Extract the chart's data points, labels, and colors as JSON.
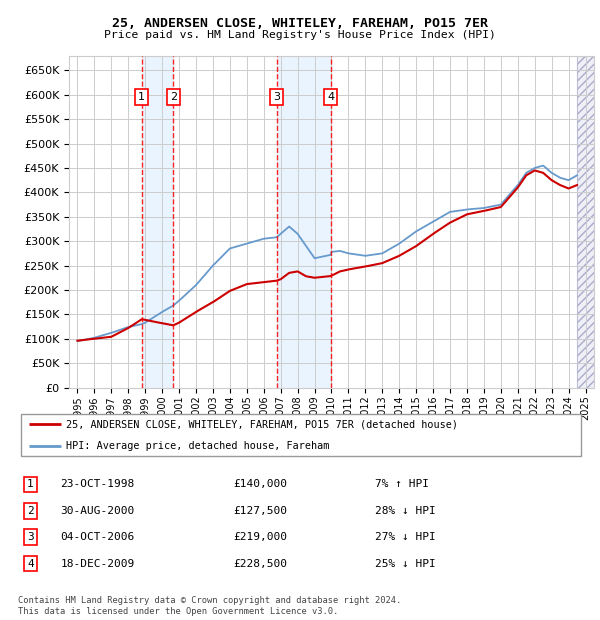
{
  "title": "25, ANDERSEN CLOSE, WHITELEY, FAREHAM, PO15 7ER",
  "subtitle": "Price paid vs. HM Land Registry's House Price Index (HPI)",
  "legend_label_red": "25, ANDERSEN CLOSE, WHITELEY, FAREHAM, PO15 7ER (detached house)",
  "legend_label_blue": "HPI: Average price, detached house, Fareham",
  "copyright": "Contains HM Land Registry data © Crown copyright and database right 2024.\nThis data is licensed under the Open Government Licence v3.0.",
  "transactions": [
    {
      "num": 1,
      "date": "23-OCT-1998",
      "price": "£140,000",
      "hpi": "7% ↑ HPI",
      "year": 1998.8
    },
    {
      "num": 2,
      "date": "30-AUG-2000",
      "price": "£127,500",
      "hpi": "28% ↓ HPI",
      "year": 2000.66
    },
    {
      "num": 3,
      "date": "04-OCT-2006",
      "price": "£219,000",
      "hpi": "27% ↓ HPI",
      "year": 2006.76
    },
    {
      "num": 4,
      "date": "18-DEC-2009",
      "price": "£228,500",
      "hpi": "25% ↓ HPI",
      "year": 2009.96
    }
  ],
  "background_color": "#ffffff",
  "grid_color": "#cccccc",
  "red_line_color": "#cc0000",
  "blue_line_color": "#6699cc",
  "shaded_color": "#ddeeff",
  "ylim": [
    0,
    680000
  ],
  "yticks": [
    0,
    50000,
    100000,
    150000,
    200000,
    250000,
    300000,
    350000,
    400000,
    450000,
    500000,
    550000,
    600000,
    650000
  ],
  "xlim_start": 1994.5,
  "xlim_end": 2025.5,
  "hatched_region_start": 2024.5,
  "hatched_region_end": 2025.5
}
